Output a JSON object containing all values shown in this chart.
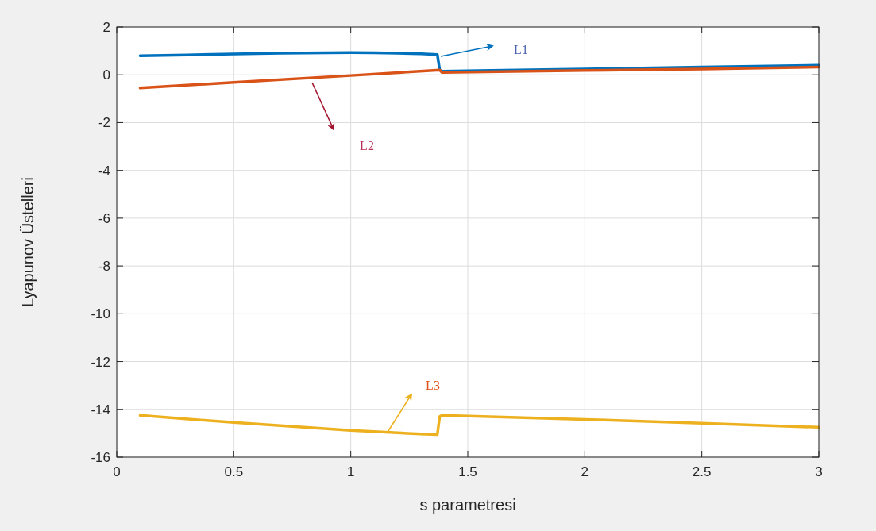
{
  "chart_data": {
    "type": "line",
    "xlabel": "s parametresi",
    "ylabel": "Lyapunov Üstelleri",
    "xlim": [
      0,
      3
    ],
    "ylim": [
      -16,
      2
    ],
    "xticks": [
      0,
      0.5,
      1,
      1.5,
      2,
      2.5,
      3
    ],
    "yticks": [
      -16,
      -14,
      -12,
      -10,
      -8,
      -6,
      -4,
      -2,
      0,
      2
    ],
    "grid": true,
    "series": [
      {
        "color": "#0072bd",
        "x": [
          0.1,
          0.3,
          0.5,
          0.7,
          0.9,
          1.0,
          1.1,
          1.2,
          1.3,
          1.37,
          1.38,
          1.39,
          1.6,
          2.0,
          2.5,
          3.0
        ],
        "values": [
          0.8,
          0.83,
          0.87,
          0.9,
          0.92,
          0.93,
          0.92,
          0.9,
          0.88,
          0.85,
          0.2,
          0.15,
          0.18,
          0.24,
          0.32,
          0.4
        ]
      },
      {
        "color": "#d95319",
        "x": [
          0.1,
          0.5,
          1.0,
          1.38,
          1.39,
          2.0,
          2.5,
          3.0
        ],
        "values": [
          -0.55,
          -0.32,
          -0.03,
          0.2,
          0.1,
          0.18,
          0.24,
          0.32
        ]
      },
      {
        "color": "#edb120",
        "x": [
          0.1,
          0.5,
          1.0,
          1.2,
          1.3,
          1.37,
          1.38,
          1.39,
          2.0,
          2.5,
          3.0
        ],
        "values": [
          -14.25,
          -14.55,
          -14.88,
          -14.98,
          -15.03,
          -15.05,
          -14.3,
          -14.25,
          -14.42,
          -14.58,
          -14.75
        ]
      }
    ],
    "annotations": [
      "L1",
      "L2",
      "L3"
    ]
  }
}
